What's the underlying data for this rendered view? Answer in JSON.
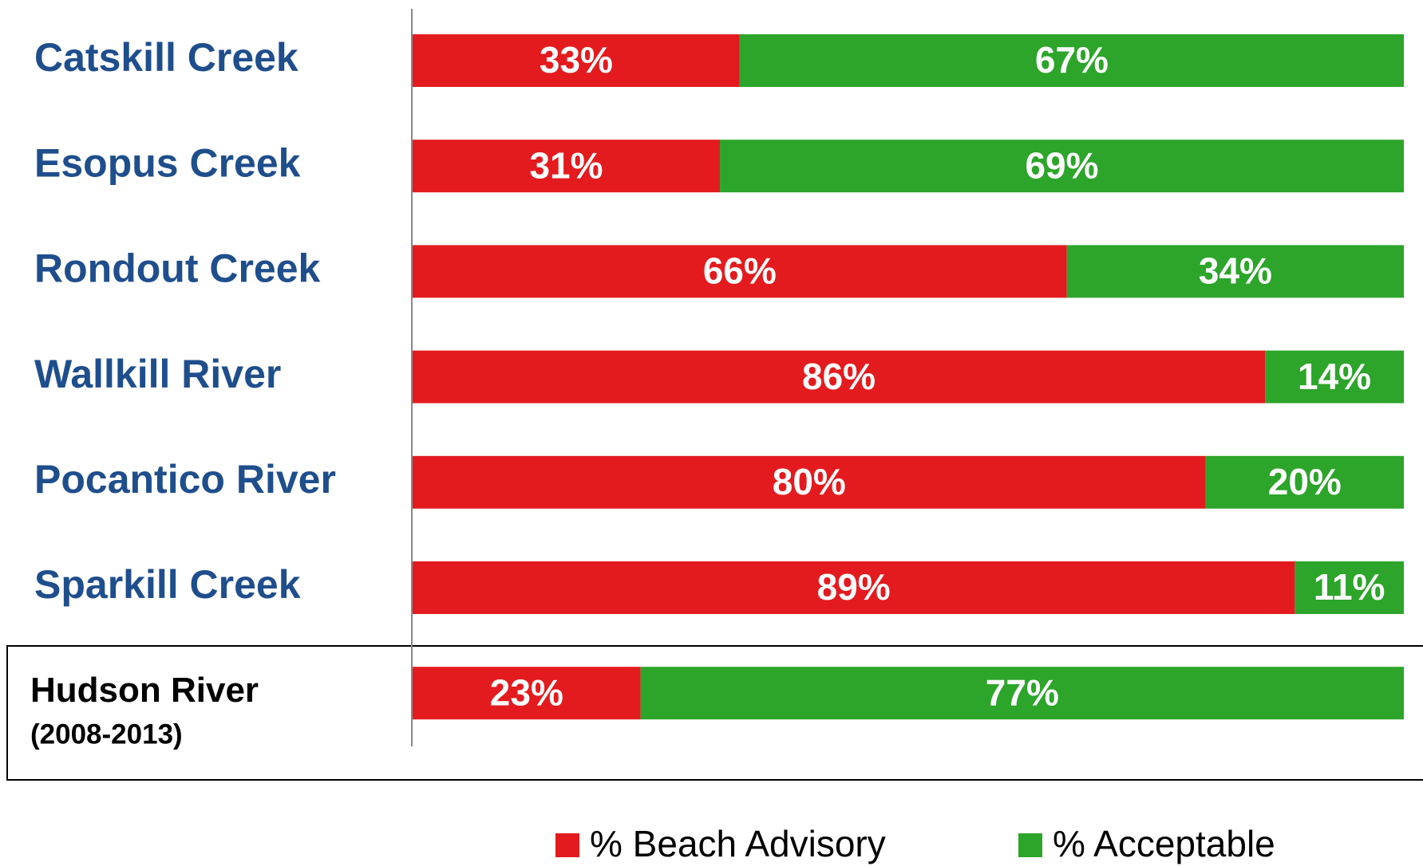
{
  "chart_data": {
    "type": "stacked_barh",
    "categories": [
      "Catskill Creek",
      "Esopus Creek",
      "Rondout Creek",
      "Wallkill River",
      "Pocantico River",
      "Sparkill Creek",
      "Hudson River"
    ],
    "annotation": "(2008-2013)",
    "xlim": [
      0,
      100
    ],
    "series": [
      {
        "name": "% Beach Advisory",
        "color": "#e31b1f",
        "values": [
          33,
          31,
          66,
          86,
          80,
          89,
          23
        ],
        "value_labels": [
          "33%",
          "31%",
          "66%",
          "86%",
          "80%",
          "89%",
          "23%"
        ]
      },
      {
        "name": "% Acceptable",
        "color": "#2ca52a",
        "values": [
          67,
          69,
          34,
          14,
          20,
          11,
          77
        ],
        "value_labels": [
          "67%",
          "69%",
          "34%",
          "14%",
          "20%",
          "11%",
          "77%"
        ]
      }
    ]
  }
}
